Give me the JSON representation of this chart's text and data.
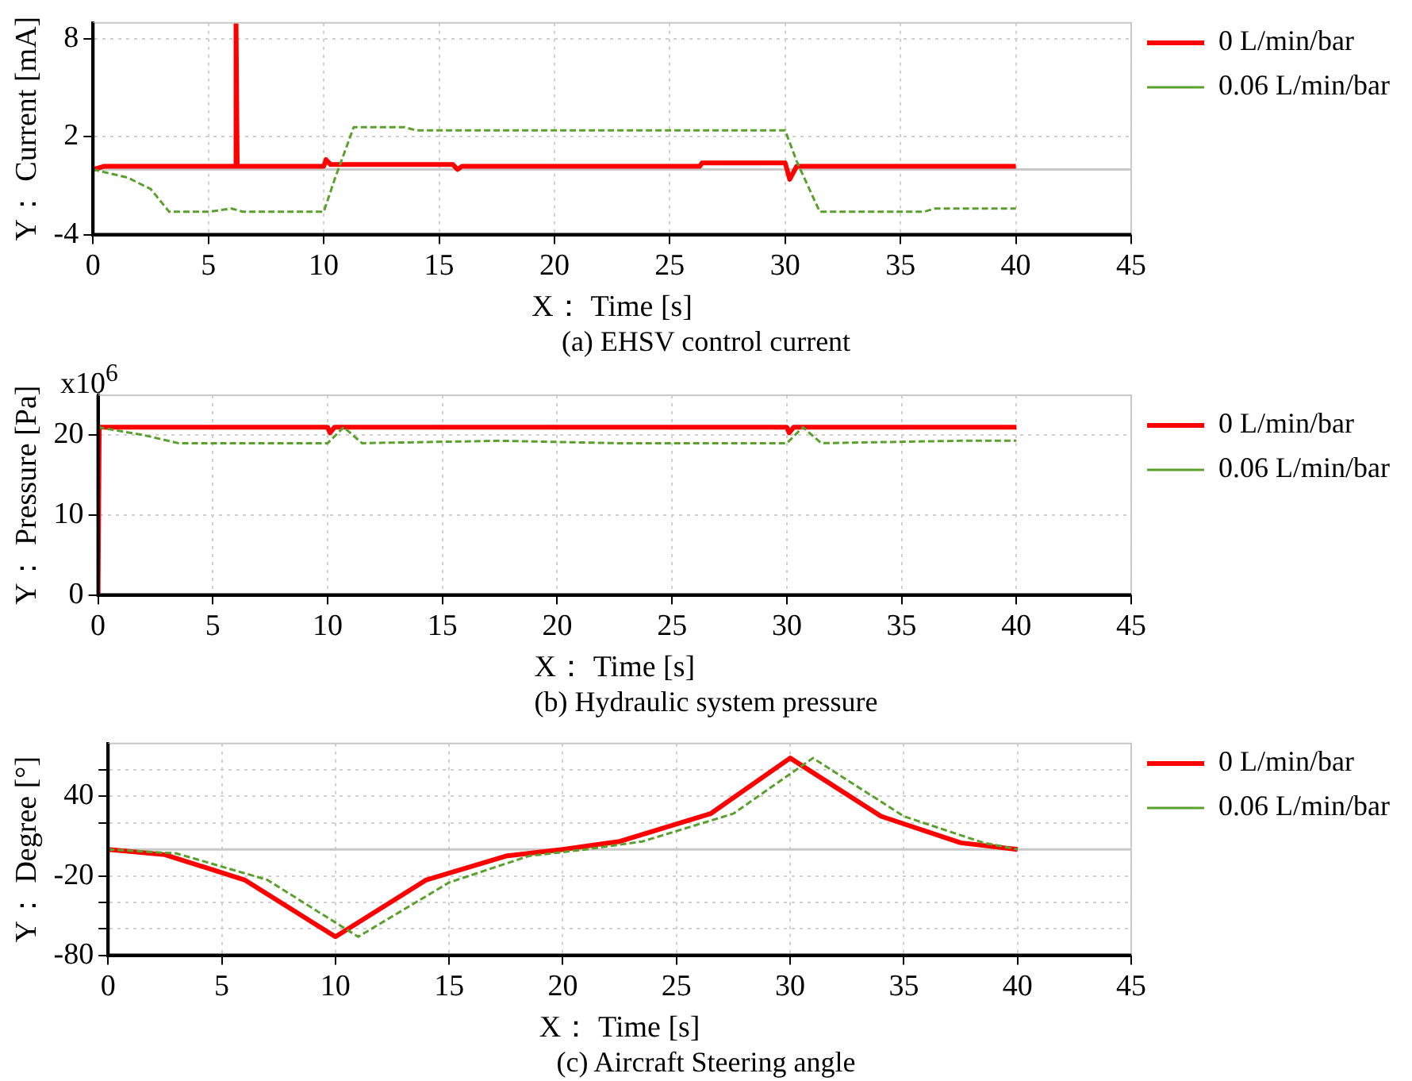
{
  "chart_data": [
    {
      "type": "line",
      "title": "(a) EHSV control current",
      "xlabel": "X： Time [s]",
      "ylabel": "Y： Current [mA]",
      "xlim": [
        0,
        45
      ],
      "xticks": [
        0,
        5,
        10,
        15,
        20,
        25,
        30,
        35,
        40,
        45
      ],
      "ylim": [
        -4,
        9
      ],
      "yticks": [
        -4,
        2,
        8
      ],
      "grid": true,
      "legend": "right",
      "marker": "none",
      "ref_lines": [
        {
          "axis": "y",
          "value": 0,
          "color": "#c8c8c8"
        }
      ],
      "series": [
        {
          "name": "0 L/min/bar",
          "color": "#ff0000",
          "line_style": "solid",
          "x": [
            0,
            0.5,
            6.2,
            6.2,
            6.25,
            10,
            10.1,
            10.3,
            15.6,
            15.8,
            16,
            26.3,
            26.4,
            30,
            30.2,
            30.5,
            40
          ],
          "values": [
            0,
            0.2,
            0.2,
            9,
            0.2,
            0.2,
            0.6,
            0.3,
            0.3,
            0,
            0.2,
            0.2,
            0.4,
            0.4,
            -0.6,
            0.2,
            0.2
          ]
        },
        {
          "name": "0.06 L/min/bar",
          "color": "#5aa02c",
          "line_style": "dashed",
          "x": [
            0,
            1.5,
            2.5,
            3.3,
            5,
            6,
            6.5,
            10,
            10.5,
            11.3,
            13.5,
            14,
            30,
            30.5,
            31.5,
            36,
            36.5,
            40
          ],
          "values": [
            0,
            -0.5,
            -1.2,
            -2.6,
            -2.6,
            -2.4,
            -2.6,
            -2.6,
            -0.5,
            2.6,
            2.6,
            2.4,
            2.4,
            0.5,
            -2.6,
            -2.6,
            -2.4,
            -2.4
          ]
        }
      ]
    },
    {
      "type": "line",
      "title": "(b) Hydraulic system pressure",
      "xlabel": "X： Time [s]",
      "ylabel": "Y： Pressure [Pa]",
      "annotations": [
        "x10$^{6}$"
      ],
      "xlim": [
        0,
        45
      ],
      "xticks": [
        0,
        5,
        10,
        15,
        20,
        25,
        30,
        35,
        40,
        45
      ],
      "ylim": [
        0,
        25
      ],
      "yticks": [
        0,
        10,
        20
      ],
      "grid": true,
      "legend": "right",
      "marker": "none",
      "series": [
        {
          "name": "0 L/min/bar",
          "color": "#ff0000",
          "line_style": "solid",
          "x": [
            0,
            0.05,
            10,
            10.1,
            10.3,
            30,
            30.1,
            30.3,
            40
          ],
          "values": [
            0,
            21,
            21,
            20.3,
            21,
            21,
            20.3,
            21,
            21
          ]
        },
        {
          "name": "0.06 L/min/bar",
          "color": "#5aa02c",
          "line_style": "dashed",
          "x": [
            0,
            2,
            3.5,
            10,
            10.7,
            11.5,
            17.5,
            22.5,
            30,
            30.7,
            31.5,
            37.5,
            40
          ],
          "values": [
            21,
            20,
            19,
            19,
            21,
            19,
            19.3,
            19,
            19,
            21,
            19,
            19.3,
            19.3
          ]
        }
      ]
    },
    {
      "type": "line",
      "title": "(c) Aircraft Steering angle",
      "xlabel": "X： Time [s]",
      "ylabel": "Y： Degree [°]",
      "xlim": [
        0,
        45
      ],
      "xticks": [
        0,
        5,
        10,
        15,
        20,
        25,
        30,
        35,
        40,
        45
      ],
      "ylim": [
        -80,
        80
      ],
      "yticks": [
        -80,
        {
          "value": -60,
          "label": null
        },
        {
          "value": -40,
          "label": null
        },
        -20,
        {
          "value": 20,
          "label": null
        },
        40,
        {
          "value": 60,
          "label": null
        }
      ],
      "grid": true,
      "legend": "right",
      "marker": "none",
      "ref_lines": [
        {
          "axis": "y",
          "value": 0,
          "color": "#c8c8c8"
        }
      ],
      "series": [
        {
          "name": "0 L/min/bar",
          "color": "#ff0000",
          "line_style": "solid",
          "x": [
            0,
            2.5,
            6,
            10,
            14,
            17.5,
            20,
            22.5,
            26.5,
            30,
            34,
            37.5,
            40
          ],
          "values": [
            0,
            -4,
            -23,
            -66,
            -23,
            -5,
            0,
            6,
            27,
            69,
            25,
            5,
            0
          ]
        },
        {
          "name": "0.06 L/min/bar",
          "color": "#5aa02c",
          "line_style": "dashed",
          "x": [
            0,
            3,
            7,
            11,
            15,
            18.5,
            21,
            23.5,
            27.5,
            31,
            35,
            38.5,
            40
          ],
          "values": [
            0,
            -3,
            -23,
            -66,
            -25,
            -5,
            0,
            6,
            27,
            69,
            25,
            5,
            0
          ]
        }
      ]
    }
  ]
}
